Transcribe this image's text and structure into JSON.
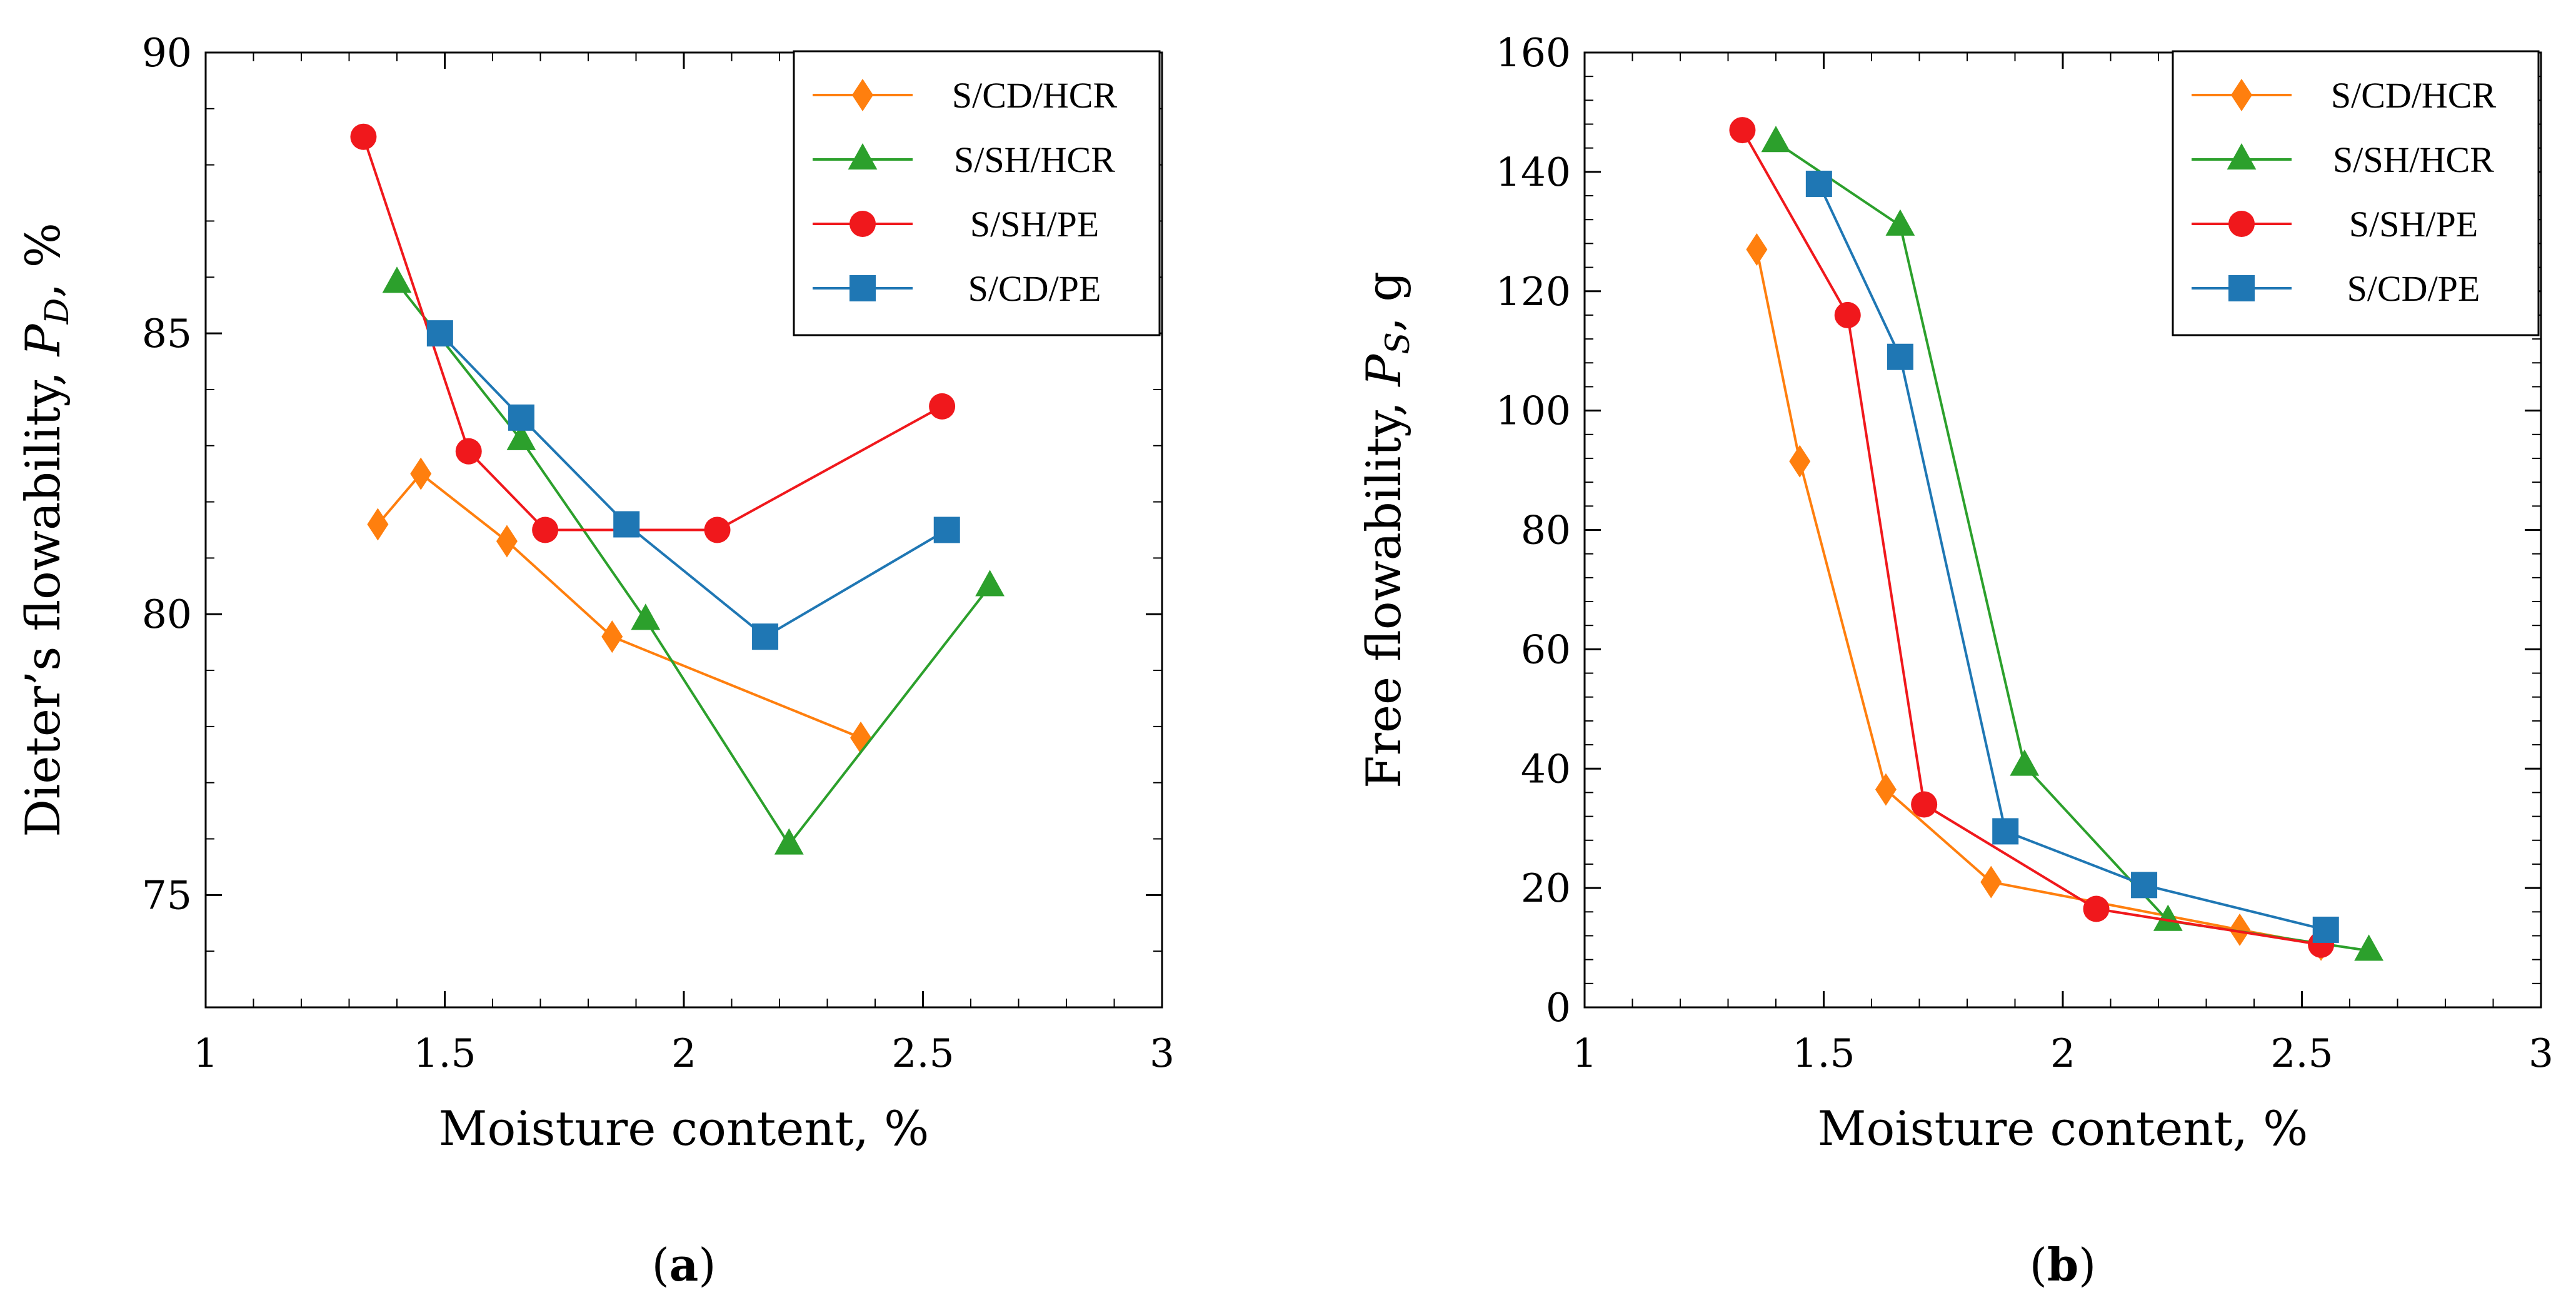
{
  "chart_data": [
    {
      "type": "line",
      "panel": "a",
      "caption": {
        "open": "(",
        "letter": "a",
        "close": ")"
      },
      "xlabel": "Moisture content, %",
      "ylabel": {
        "text": "Dieter’s flowability, ",
        "sym": "P",
        "sub": "D",
        "unit": ", %"
      },
      "xlim": [
        1,
        3
      ],
      "ylim": [
        73,
        90
      ],
      "xticks": [
        1,
        1.5,
        2,
        2.5,
        3
      ],
      "xtick_labels": [
        "1",
        "1.5",
        "2",
        "2.5",
        "3"
      ],
      "yticks": [
        75,
        80,
        85,
        90
      ],
      "ytick_labels": [
        "75",
        "80",
        "85",
        "90"
      ],
      "grid": false,
      "legend_position": "top-right",
      "series": [
        {
          "name": "S/CD/HCR",
          "color": "#ff7f0e",
          "marker": "diamond",
          "x": [
            1.36,
            1.45,
            1.63,
            1.85,
            2.37
          ],
          "y": [
            81.6,
            82.5,
            81.3,
            79.6,
            77.8
          ]
        },
        {
          "name": "S/SH/HCR",
          "color": "#2ca02c",
          "marker": "triangle",
          "x": [
            1.4,
            1.66,
            1.92,
            2.22,
            2.64
          ],
          "y": [
            85.9,
            83.1,
            79.9,
            75.9,
            80.5
          ]
        },
        {
          "name": "S/SH/PE",
          "color": "#f0181c",
          "marker": "circle",
          "x": [
            1.33,
            1.55,
            1.71,
            2.07,
            2.54
          ],
          "y": [
            88.5,
            82.9,
            81.5,
            81.5,
            83.7
          ]
        },
        {
          "name": "S/CD/PE",
          "color": "#1f77b4",
          "marker": "square",
          "x": [
            1.49,
            1.66,
            1.88,
            2.17,
            2.55
          ],
          "y": [
            85.0,
            83.5,
            81.6,
            79.6,
            81.5
          ]
        }
      ]
    },
    {
      "type": "line",
      "panel": "b",
      "caption": {
        "open": "(",
        "letter": "b",
        "close": ")"
      },
      "xlabel": "Moisture content, %",
      "ylabel": {
        "text": "Free flowability, ",
        "sym": "P",
        "sub": "S",
        "unit": ", g"
      },
      "xlim": [
        1,
        3
      ],
      "ylim": [
        0,
        160
      ],
      "xticks": [
        1,
        1.5,
        2,
        2.5,
        3
      ],
      "xtick_labels": [
        "1",
        "1.5",
        "2",
        "2.5",
        "3"
      ],
      "yticks": [
        0,
        20,
        40,
        60,
        80,
        100,
        120,
        140,
        160
      ],
      "ytick_labels": [
        "0",
        "20",
        "40",
        "60",
        "80",
        "100",
        "120",
        "140",
        "160"
      ],
      "grid": false,
      "legend_position": "top-right",
      "series": [
        {
          "name": "S/CD/HCR",
          "color": "#ff7f0e",
          "marker": "diamond",
          "x": [
            1.36,
            1.45,
            1.63,
            1.85,
            2.37,
            2.54
          ],
          "y": [
            127,
            91.5,
            36.5,
            21,
            13,
            10.5
          ]
        },
        {
          "name": "S/SH/HCR",
          "color": "#2ca02c",
          "marker": "triangle",
          "x": [
            1.4,
            1.66,
            1.92,
            2.22,
            2.64
          ],
          "y": [
            145,
            131,
            40.5,
            14.5,
            9.5
          ]
        },
        {
          "name": "S/SH/PE",
          "color": "#f0181c",
          "marker": "circle",
          "x": [
            1.33,
            1.55,
            1.71,
            2.07,
            2.54
          ],
          "y": [
            147,
            116,
            34,
            16.5,
            10.5
          ]
        },
        {
          "name": "S/CD/PE",
          "color": "#1f77b4",
          "marker": "square",
          "x": [
            1.49,
            1.66,
            1.88,
            2.17,
            2.55
          ],
          "y": [
            138,
            109,
            29.5,
            20.5,
            13
          ]
        }
      ]
    }
  ]
}
